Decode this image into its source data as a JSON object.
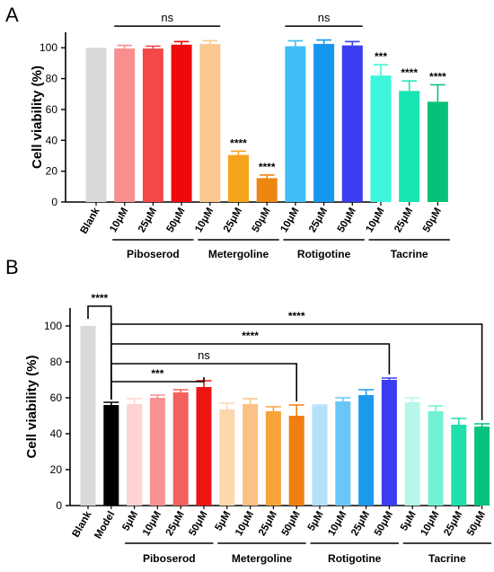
{
  "figure": {
    "panel_a_letter": "A",
    "panel_b_letter": "B"
  },
  "chart_data": [
    {
      "type": "bar",
      "panel": "A",
      "ylabel": "Cell viability (%)",
      "ylim": [
        0,
        110
      ],
      "yticks": [
        0,
        20,
        40,
        60,
        80,
        100
      ],
      "categories": [
        "Blank",
        "10μM",
        "25μM",
        "50μM",
        "10μM",
        "25μM",
        "50μM",
        "10μM",
        "25μM",
        "50μM",
        "10μM",
        "25μM",
        "50μM"
      ],
      "groups": [
        {
          "label": "Piboserod",
          "from": 1,
          "to": 3
        },
        {
          "label": "Metergoline",
          "from": 4,
          "to": 6
        },
        {
          "label": "Rotigotine",
          "from": 7,
          "to": 9
        },
        {
          "label": "Tacrine",
          "from": 10,
          "to": 12
        }
      ],
      "values": [
        100,
        99.5,
        99.5,
        102,
        102.5,
        30.5,
        15.5,
        101,
        102.5,
        101.5,
        82,
        72,
        65
      ],
      "errors": [
        0,
        2,
        1.5,
        2,
        2,
        2.5,
        2,
        3.5,
        2.5,
        2.5,
        7,
        6.5,
        11
      ],
      "colors": [
        "#d9d9d9",
        "#f98e8e",
        "#f24848",
        "#ee0a0a",
        "#fac88e",
        "#f6a21c",
        "#ec8610",
        "#40bdf6",
        "#1597ee",
        "#3b3df2",
        "#3ef6db",
        "#19e4b3",
        "#06c279"
      ],
      "annotations": [
        "",
        "",
        "",
        "",
        "",
        "****",
        "****",
        "",
        "",
        "",
        "***",
        "****",
        "****"
      ],
      "comparisons": [
        {
          "from": 1,
          "to": 4,
          "label": "ns",
          "y": 114
        },
        {
          "from": 7,
          "to": 9,
          "label": "ns",
          "y": 114
        }
      ]
    },
    {
      "type": "bar",
      "panel": "B",
      "ylabel": "Cell viability (%)",
      "ylim": [
        0,
        110
      ],
      "yticks": [
        0,
        20,
        40,
        60,
        80,
        100
      ],
      "categories": [
        "Blank",
        "Model",
        "5μM",
        "10μM",
        "25μM",
        "50μM",
        "5μM",
        "10μM",
        "25μM",
        "50μM",
        "5μM",
        "10μM",
        "25μM",
        "50μM",
        "5μM",
        "10μM",
        "25μM",
        "50μM"
      ],
      "groups": [
        {
          "label": "Piboserod",
          "from": 2,
          "to": 5
        },
        {
          "label": "Metergoline",
          "from": 6,
          "to": 9
        },
        {
          "label": "Rotigotine",
          "from": 10,
          "to": 13
        },
        {
          "label": "Tacrine",
          "from": 14,
          "to": 17
        }
      ],
      "values": [
        100,
        56,
        56.5,
        60,
        63,
        66,
        53.5,
        56.5,
        52.5,
        50,
        55.5,
        58,
        61.5,
        70,
        57.5,
        52.5,
        45,
        44
      ],
      "errors": [
        0,
        1.5,
        3,
        1.5,
        1.5,
        3.5,
        3.5,
        3,
        2.5,
        6,
        0.5,
        2,
        3,
        1,
        2.5,
        3,
        3.5,
        1.5
      ],
      "colors": [
        "#d9d9d9",
        "#000000",
        "#ffd3d3",
        "#f89292",
        "#f26060",
        "#ee1414",
        "#fcd8ad",
        "#fbc185",
        "#f7a33a",
        "#f07e10",
        "#b5e0fa",
        "#6bc6f8",
        "#1e9aec",
        "#3b3df2",
        "#b7f7ea",
        "#72f2d4",
        "#1fdfac",
        "#06c27c"
      ],
      "comparisons": [
        {
          "from": 0,
          "to": 1,
          "label": "****",
          "y": 111
        },
        {
          "from": 1,
          "to": 17,
          "label": "****",
          "y": 101
        },
        {
          "from": 1,
          "to": 13,
          "label": "****",
          "y": 90
        },
        {
          "from": 1,
          "to": 9,
          "label": "ns",
          "y": 79
        },
        {
          "from": 1,
          "to": 5,
          "label": "***",
          "y": 69
        }
      ]
    }
  ]
}
